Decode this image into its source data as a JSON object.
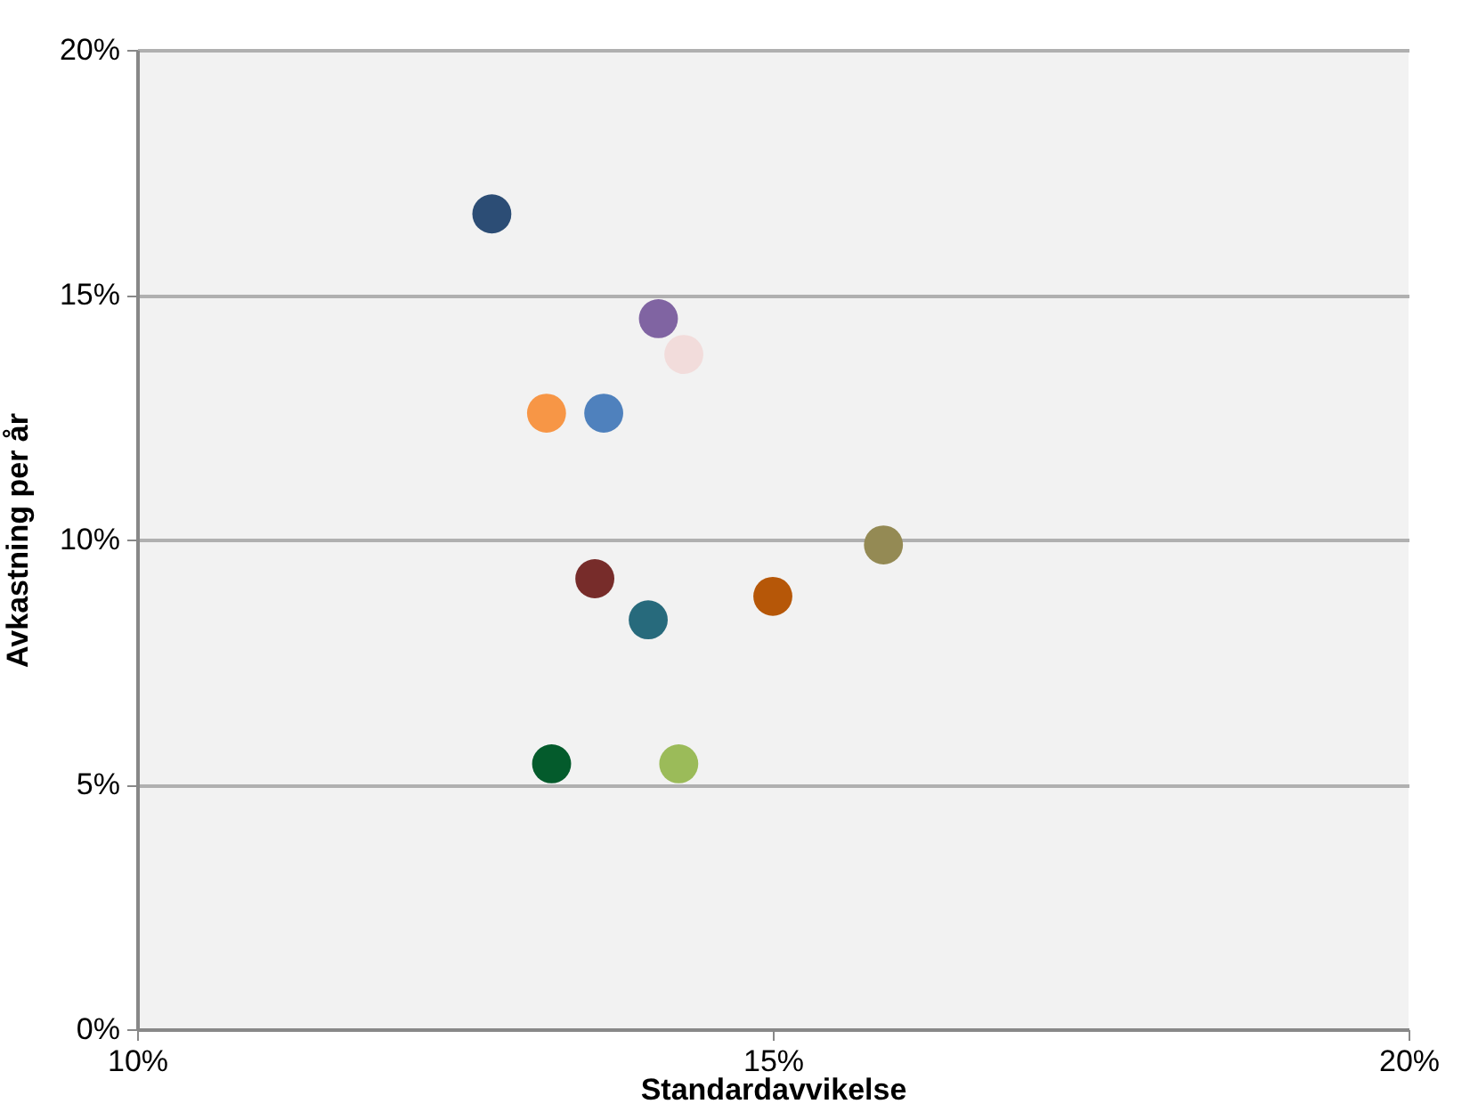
{
  "chart_data": {
    "type": "scatter",
    "xlabel": "Standardavvikelse",
    "ylabel": "Avkastning per år",
    "x": [
      12.79,
      14.1,
      14.3,
      13.22,
      13.67,
      15.87,
      13.6,
      15.0,
      14.02,
      13.26,
      14.26
    ],
    "values": [
      16.65,
      14.51,
      13.78,
      12.58,
      12.58,
      9.89,
      9.2,
      8.84,
      8.36,
      5.42,
      5.42
    ],
    "colors": [
      "#2c4d75",
      "#8064a2",
      "#f2dcdb",
      "#f79646",
      "#4f81bd",
      "#948a54",
      "#772c2a",
      "#b65708",
      "#276a7c",
      "#045b2c",
      "#9bbb59"
    ],
    "xlim": [
      10,
      20
    ],
    "ylim": [
      0,
      20
    ],
    "xticks": [
      {
        "value": 10,
        "label": "10%"
      },
      {
        "value": 15,
        "label": "15%"
      },
      {
        "value": 20,
        "label": "20%"
      }
    ],
    "yticks": [
      {
        "value": 0,
        "label": "0%"
      },
      {
        "value": 5,
        "label": "5%"
      },
      {
        "value": 10,
        "label": "10%"
      },
      {
        "value": 15,
        "label": "15%"
      },
      {
        "value": 20,
        "label": "20%"
      }
    ],
    "grid": "y",
    "marker": "circle"
  }
}
